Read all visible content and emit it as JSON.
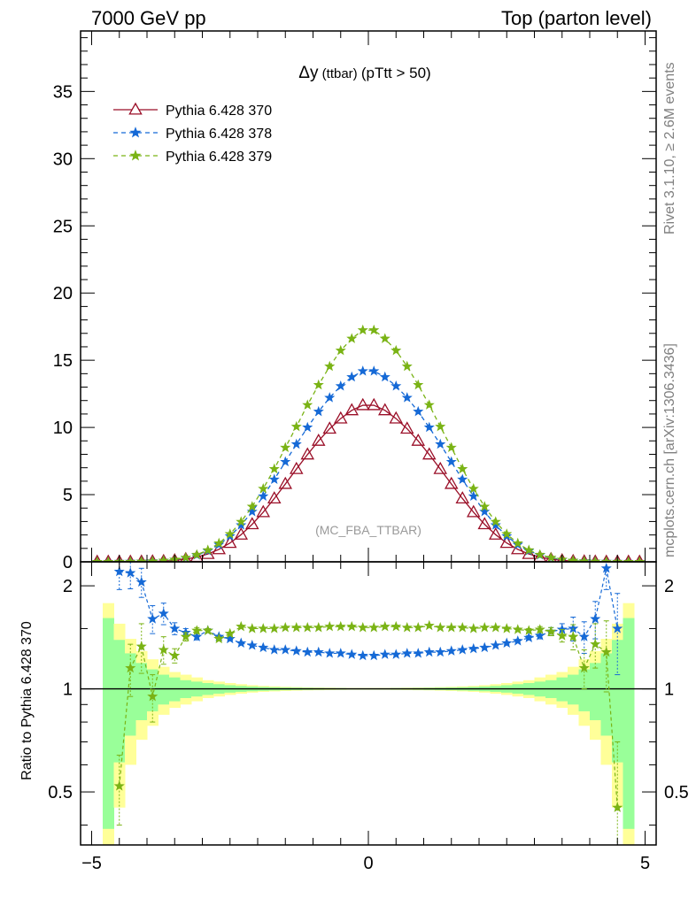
{
  "header": {
    "left": "7000 GeV pp",
    "right": "Top (parton level)"
  },
  "side": {
    "rivet": "Rivet 3.1.10, ≥ 2.6M events",
    "mcplots": "mcplots.cern.ch [arXiv:1306.3436]"
  },
  "plot_title": {
    "main": "Δy",
    "sub": " (ttbar) ",
    "cut": "(pTtt > 50)"
  },
  "analysis_tag": "(MC_FBA_TTBAR)",
  "ratio_ylabel": "Ratio to Pythia 6.428 370",
  "colors": {
    "s370": "#9a0e27",
    "s378": "#1569d6",
    "s379": "#7ab315",
    "band_inner": "#99ff99",
    "band_outer": "#ffff99"
  },
  "chart_data": [
    {
      "type": "line",
      "panel": "main",
      "xlim": [
        -5.2,
        5.2
      ],
      "ylim": [
        0,
        39.5
      ],
      "yticks": [
        0,
        5,
        10,
        15,
        20,
        25,
        30,
        35
      ],
      "ytick_labels": [
        "0",
        "5",
        "10",
        "15",
        "20",
        "25",
        "30",
        "35"
      ],
      "legend_position": "top-left",
      "series": [
        {
          "name": "Pythia 6.428 370",
          "marker": "open-triangle",
          "line": "solid",
          "x": [
            -4.9,
            -4.7,
            -4.5,
            -4.3,
            -4.1,
            -3.9,
            -3.7,
            -3.5,
            -3.3,
            -3.1,
            -2.9,
            -2.7,
            -2.5,
            -2.3,
            -2.1,
            -1.9,
            -1.7,
            -1.5,
            -1.3,
            -1.1,
            -0.9,
            -0.7,
            -0.5,
            -0.3,
            -0.1,
            0.1,
            0.3,
            0.5,
            0.7,
            0.9,
            1.1,
            1.3,
            1.5,
            1.7,
            1.9,
            2.1,
            2.3,
            2.5,
            2.7,
            2.9,
            3.1,
            3.3,
            3.5,
            3.7,
            3.9,
            4.1,
            4.3,
            4.5,
            4.7,
            4.9
          ],
          "y": [
            0.0,
            0.001,
            0.003,
            0.006,
            0.013,
            0.028,
            0.056,
            0.108,
            0.2,
            0.35,
            0.58,
            0.93,
            1.4,
            2.02,
            2.79,
            3.69,
            4.71,
            5.79,
            6.9,
            7.98,
            9.0,
            9.9,
            10.66,
            11.27,
            11.65,
            11.65,
            11.27,
            10.66,
            9.9,
            9.0,
            7.98,
            6.9,
            5.79,
            4.71,
            3.69,
            2.79,
            2.02,
            1.4,
            0.93,
            0.58,
            0.35,
            0.2,
            0.108,
            0.056,
            0.028,
            0.013,
            0.006,
            0.003,
            0.001,
            0.0
          ]
        },
        {
          "name": "Pythia 6.428 378",
          "marker": "star",
          "line": "dashed",
          "x": [
            -4.9,
            -4.7,
            -4.5,
            -4.3,
            -4.1,
            -3.9,
            -3.7,
            -3.5,
            -3.3,
            -3.1,
            -2.9,
            -2.7,
            -2.5,
            -2.3,
            -2.1,
            -1.9,
            -1.7,
            -1.5,
            -1.3,
            -1.1,
            -0.9,
            -0.7,
            -0.5,
            -0.3,
            -0.1,
            0.1,
            0.3,
            0.5,
            0.7,
            0.9,
            1.1,
            1.3,
            1.5,
            1.7,
            1.9,
            2.1,
            2.3,
            2.5,
            2.7,
            2.9,
            3.1,
            3.3,
            3.5,
            3.7,
            3.9,
            4.1,
            4.3,
            4.5,
            4.7,
            4.9
          ],
          "y": [
            0.0,
            0.002,
            0.007,
            0.013,
            0.024,
            0.046,
            0.088,
            0.16,
            0.29,
            0.5,
            0.82,
            1.28,
            1.91,
            2.73,
            3.73,
            4.88,
            6.13,
            7.44,
            8.75,
            10.0,
            11.18,
            12.21,
            13.08,
            13.75,
            14.19,
            14.19,
            13.75,
            13.08,
            12.21,
            11.18,
            10.0,
            8.75,
            7.44,
            6.13,
            4.88,
            3.73,
            2.73,
            1.91,
            1.28,
            0.82,
            0.5,
            0.29,
            0.16,
            0.088,
            0.046,
            0.024,
            0.013,
            0.007,
            0.002,
            0.0
          ]
        },
        {
          "name": "Pythia 6.428 379",
          "marker": "star",
          "line": "dashed",
          "x": [
            -4.9,
            -4.7,
            -4.5,
            -4.3,
            -4.1,
            -3.9,
            -3.7,
            -3.5,
            -3.3,
            -3.1,
            -2.9,
            -2.7,
            -2.5,
            -2.3,
            -2.1,
            -1.9,
            -1.7,
            -1.5,
            -1.3,
            -1.1,
            -0.9,
            -0.7,
            -0.5,
            -0.3,
            -0.1,
            0.1,
            0.3,
            0.5,
            0.7,
            0.9,
            1.1,
            1.3,
            1.5,
            1.7,
            1.9,
            2.1,
            2.3,
            2.5,
            2.7,
            2.9,
            3.1,
            3.3,
            3.5,
            3.7,
            3.9,
            4.1,
            4.3,
            4.5,
            4.7,
            4.9
          ],
          "y": [
            0.0,
            0.001,
            0.003,
            0.008,
            0.018,
            0.04,
            0.09,
            0.17,
            0.31,
            0.53,
            0.87,
            1.38,
            2.07,
            2.98,
            4.11,
            5.44,
            6.91,
            8.5,
            10.06,
            11.67,
            13.16,
            14.54,
            15.72,
            16.61,
            17.24,
            17.24,
            16.61,
            15.72,
            14.54,
            13.16,
            11.67,
            10.06,
            8.5,
            6.91,
            5.44,
            4.11,
            2.98,
            2.07,
            1.38,
            0.87,
            0.53,
            0.31,
            0.17,
            0.09,
            0.04,
            0.018,
            0.008,
            0.003,
            0.001,
            0.0
          ]
        }
      ]
    },
    {
      "type": "line",
      "panel": "ratio",
      "ylabel": "Ratio to Pythia 6.428 370",
      "xlim": [
        -5.2,
        5.2
      ],
      "ylim": [
        0.35,
        2.35
      ],
      "log_y": true,
      "xticks": [
        -5,
        0,
        5
      ],
      "xtick_labels": [
        "−5",
        "0",
        "5"
      ],
      "yticks": [
        0.5,
        1,
        2
      ],
      "ytick_labels": [
        "0.5",
        "1",
        "2"
      ],
      "reference_line": 1,
      "band": {
        "x_edges": [
          -4.8,
          -4.6,
          -4.4,
          -4.2,
          -4.0,
          -3.8,
          -3.6,
          -3.4,
          -3.2,
          -3.0,
          -2.8,
          -2.6,
          -2.4,
          -2.2,
          -2.0,
          -1.8,
          -1.6,
          -1.4,
          -1.2,
          -1.0,
          -0.8,
          -0.6,
          -0.4,
          -0.2,
          0.0,
          0.2,
          0.4,
          0.6,
          0.8,
          1.0,
          1.2,
          1.4,
          1.6,
          1.8,
          2.0,
          2.2,
          2.4,
          2.6,
          2.8,
          3.0,
          3.2,
          3.4,
          3.6,
          3.8,
          4.0,
          4.2,
          4.4,
          4.6,
          4.8
        ],
        "inner": [
          0.61,
          0.39,
          0.27,
          0.19,
          0.14,
          0.1,
          0.08,
          0.06,
          0.05,
          0.04,
          0.032,
          0.025,
          0.02,
          0.016,
          0.013,
          0.011,
          0.009,
          0.008,
          0.007,
          0.006,
          0.005,
          0.005,
          0.004,
          0.004,
          0.004,
          0.004,
          0.005,
          0.005,
          0.006,
          0.007,
          0.008,
          0.009,
          0.011,
          0.013,
          0.016,
          0.02,
          0.025,
          0.032,
          0.04,
          0.05,
          0.06,
          0.08,
          0.1,
          0.14,
          0.19,
          0.27,
          0.39,
          0.61
        ],
        "outer": [
          0.78,
          0.55,
          0.4,
          0.29,
          0.22,
          0.16,
          0.12,
          0.1,
          0.08,
          0.06,
          0.05,
          0.04,
          0.032,
          0.025,
          0.02,
          0.017,
          0.014,
          0.012,
          0.01,
          0.009,
          0.008,
          0.007,
          0.006,
          0.006,
          0.006,
          0.006,
          0.007,
          0.008,
          0.009,
          0.01,
          0.012,
          0.014,
          0.017,
          0.02,
          0.025,
          0.032,
          0.04,
          0.05,
          0.06,
          0.08,
          0.1,
          0.12,
          0.16,
          0.22,
          0.29,
          0.4,
          0.55,
          0.78
        ]
      },
      "series": [
        {
          "name": "Pythia 6.428 378",
          "x": [
            -4.5,
            -4.3,
            -4.1,
            -3.9,
            -3.7,
            -3.5,
            -3.3,
            -3.1,
            -2.9,
            -2.7,
            -2.5,
            -2.3,
            -2.1,
            -1.9,
            -1.7,
            -1.5,
            -1.3,
            -1.1,
            -0.9,
            -0.7,
            -0.5,
            -0.3,
            -0.1,
            0.1,
            0.3,
            0.5,
            0.7,
            0.9,
            1.1,
            1.3,
            1.5,
            1.7,
            1.9,
            2.1,
            2.3,
            2.5,
            2.7,
            2.9,
            3.1,
            3.3,
            3.5,
            3.7,
            3.9,
            4.1,
            4.3,
            4.5
          ],
          "y": [
            2.2,
            2.18,
            2.05,
            1.6,
            1.66,
            1.5,
            1.46,
            1.42,
            1.48,
            1.42,
            1.4,
            1.36,
            1.34,
            1.32,
            1.3,
            1.3,
            1.29,
            1.28,
            1.28,
            1.27,
            1.27,
            1.26,
            1.25,
            1.25,
            1.26,
            1.26,
            1.27,
            1.27,
            1.28,
            1.28,
            1.29,
            1.3,
            1.31,
            1.32,
            1.34,
            1.36,
            1.38,
            1.41,
            1.43,
            1.47,
            1.49,
            1.5,
            1.42,
            1.6,
            2.25,
            1.5
          ],
          "err": [
            0.25,
            0.22,
            0.2,
            0.15,
            0.12,
            0.06,
            0.04,
            0.03,
            0.02,
            0.015,
            0.012,
            0.01,
            0.008,
            0.007,
            0.006,
            0.005,
            0.005,
            0.004,
            0.004,
            0.004,
            0.004,
            0.004,
            0.004,
            0.004,
            0.004,
            0.004,
            0.004,
            0.004,
            0.004,
            0.005,
            0.005,
            0.006,
            0.007,
            0.008,
            0.01,
            0.012,
            0.015,
            0.02,
            0.03,
            0.04,
            0.06,
            0.12,
            0.15,
            0.2,
            0.3,
            0.4
          ]
        },
        {
          "name": "Pythia 6.428 379",
          "x": [
            -4.5,
            -4.3,
            -4.1,
            -3.9,
            -3.7,
            -3.5,
            -3.3,
            -3.1,
            -2.9,
            -2.7,
            -2.5,
            -2.3,
            -2.1,
            -1.9,
            -1.7,
            -1.5,
            -1.3,
            -1.1,
            -0.9,
            -0.7,
            -0.5,
            -0.3,
            -0.1,
            0.1,
            0.3,
            0.5,
            0.7,
            0.9,
            1.1,
            1.3,
            1.5,
            1.7,
            1.9,
            2.1,
            2.3,
            2.5,
            2.7,
            2.9,
            3.1,
            3.3,
            3.5,
            3.7,
            3.9,
            4.1,
            4.3,
            4.5
          ],
          "y": [
            0.52,
            1.15,
            1.33,
            0.95,
            1.3,
            1.25,
            1.42,
            1.48,
            1.48,
            1.4,
            1.45,
            1.52,
            1.5,
            1.5,
            1.5,
            1.51,
            1.51,
            1.51,
            1.51,
            1.52,
            1.52,
            1.52,
            1.51,
            1.51,
            1.52,
            1.52,
            1.51,
            1.51,
            1.53,
            1.51,
            1.51,
            1.51,
            1.5,
            1.51,
            1.51,
            1.5,
            1.49,
            1.48,
            1.49,
            1.47,
            1.43,
            1.42,
            1.15,
            1.35,
            1.28,
            0.45
          ],
          "err": [
            0.12,
            0.2,
            0.22,
            0.15,
            0.12,
            0.06,
            0.04,
            0.03,
            0.02,
            0.015,
            0.012,
            0.01,
            0.008,
            0.007,
            0.006,
            0.005,
            0.005,
            0.004,
            0.004,
            0.004,
            0.004,
            0.004,
            0.004,
            0.004,
            0.004,
            0.004,
            0.004,
            0.004,
            0.004,
            0.005,
            0.005,
            0.006,
            0.007,
            0.008,
            0.01,
            0.012,
            0.015,
            0.02,
            0.03,
            0.04,
            0.06,
            0.12,
            0.15,
            0.2,
            0.3,
            0.25
          ]
        }
      ]
    }
  ]
}
